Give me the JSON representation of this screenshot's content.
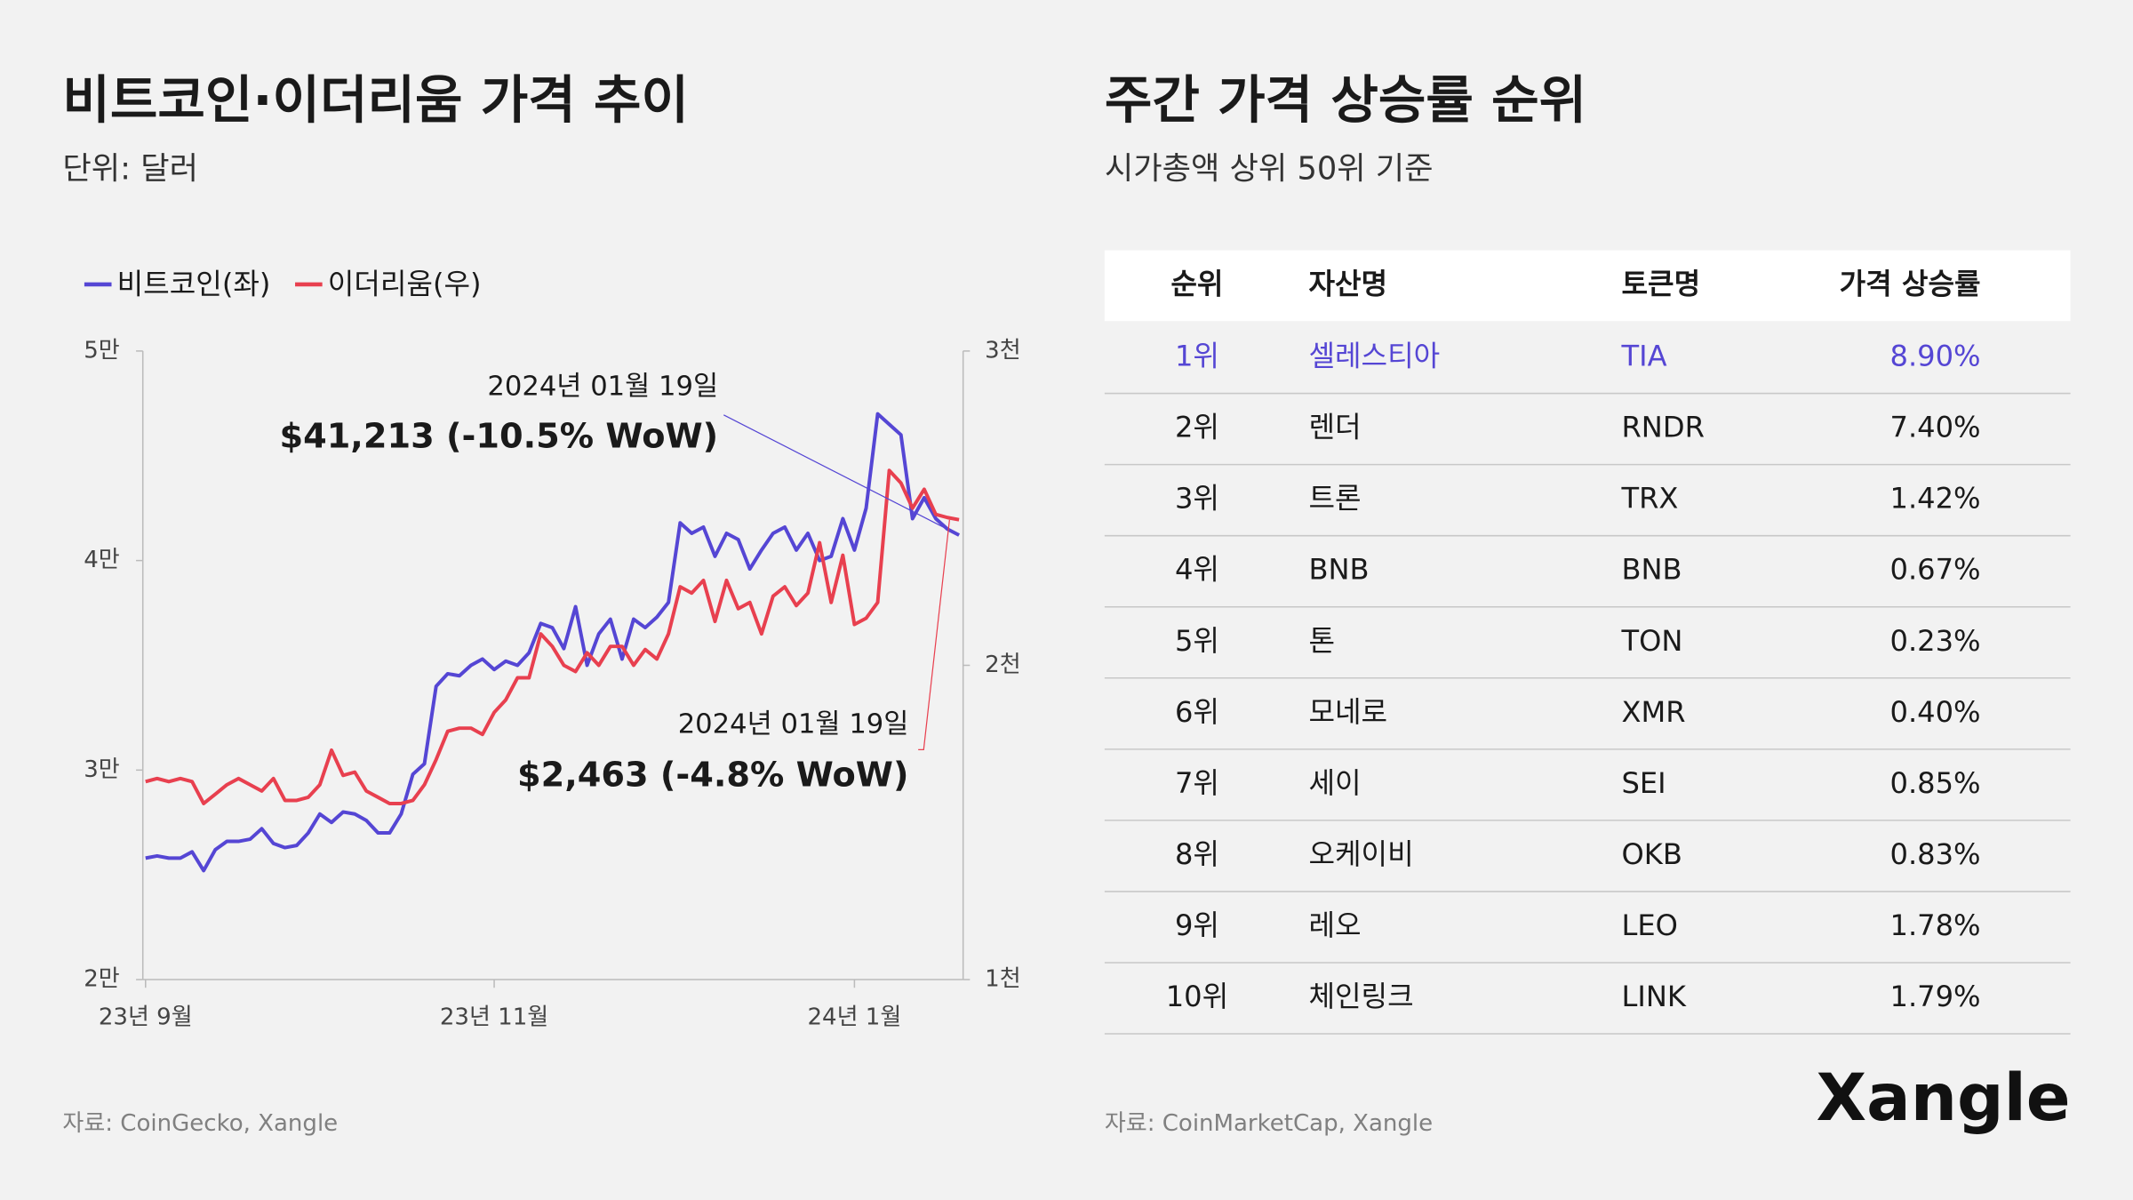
{
  "chart_data": {
    "type": "line",
    "title": "비트코인·이더리움 가격 추이",
    "subtitle": "단위: 달러",
    "source": "자료: CoinGecko, Xangle",
    "categories": [
      "23년 9월",
      null,
      null,
      null,
      null,
      null,
      null,
      null,
      null,
      null,
      null,
      null,
      null,
      null,
      null,
      null,
      null,
      null,
      null,
      null,
      null,
      null,
      null,
      null,
      null,
      null,
      null,
      null,
      null,
      null,
      "23년 11월",
      null,
      null,
      null,
      null,
      null,
      null,
      null,
      null,
      null,
      null,
      null,
      null,
      null,
      null,
      null,
      null,
      null,
      null,
      null,
      null,
      null,
      null,
      null,
      null,
      null,
      null,
      null,
      null,
      null,
      null,
      "24년 1월",
      null,
      null,
      null,
      null,
      null,
      null,
      null,
      null,
      null
    ],
    "series": [
      {
        "name": "비트코인(좌)",
        "color": "#5546d4",
        "axis": "y",
        "values": [
          25800,
          25900,
          25800,
          25800,
          26100,
          25200,
          26200,
          26600,
          26600,
          26700,
          27200,
          26500,
          26300,
          26400,
          27000,
          27900,
          27500,
          28000,
          27900,
          27600,
          27000,
          27000,
          27900,
          29800,
          30300,
          34000,
          34600,
          34500,
          35000,
          35300,
          34800,
          35200,
          35000,
          35600,
          37000,
          36800,
          35800,
          37800,
          35000,
          36500,
          37200,
          35300,
          37200,
          36800,
          37300,
          38000,
          41800,
          41300,
          41600,
          40200,
          41300,
          41000,
          39600,
          40500,
          41300,
          41600,
          40500,
          41300,
          40000,
          40200,
          42000,
          40500,
          42500,
          47000,
          46500,
          46000,
          42000,
          43000,
          42000,
          41500,
          41213
        ]
      },
      {
        "name": "이더리움(우)",
        "color": "#e8404f",
        "axis": "y2",
        "values": [
          1630,
          1640,
          1630,
          1640,
          1630,
          1560,
          1590,
          1620,
          1640,
          1620,
          1600,
          1640,
          1570,
          1570,
          1580,
          1620,
          1730,
          1650,
          1660,
          1600,
          1580,
          1560,
          1560,
          1570,
          1620,
          1700,
          1790,
          1800,
          1800,
          1780,
          1850,
          1890,
          1960,
          1960,
          2100,
          2060,
          2000,
          1980,
          2040,
          2000,
          2060,
          2060,
          2000,
          2050,
          2020,
          2100,
          2250,
          2230,
          2270,
          2140,
          2270,
          2180,
          2200,
          2100,
          2220,
          2250,
          2190,
          2230,
          2390,
          2200,
          2350,
          2130,
          2150,
          2200,
          2620,
          2580,
          2500,
          2560,
          2480,
          2470,
          2463
        ]
      }
    ],
    "ylim": [
      20000,
      50000
    ],
    "yticks": [
      {
        "value": 20000,
        "label": "2만"
      },
      {
        "value": 30000,
        "label": "3만"
      },
      {
        "value": 40000,
        "label": "4만"
      },
      {
        "value": 50000,
        "label": "5만"
      }
    ],
    "y2lim": [
      1000,
      3000
    ],
    "y2ticks": [
      {
        "value": 1000,
        "label": "1천"
      },
      {
        "value": 2000,
        "label": "2천"
      },
      {
        "value": 3000,
        "label": "3천"
      }
    ],
    "legend": "top-left",
    "grid": false,
    "annotations": [
      {
        "date": "2024년 01월 19일",
        "text": "$41,213 (-10.5% WoW)"
      },
      {
        "date": "2024년 01월 19일",
        "text": "$2,463 (-4.8% WoW)"
      }
    ]
  },
  "table": {
    "title": "주간 가격 상승률 순위",
    "subtitle": "시가총액 상위 50위 기준",
    "source": "자료: CoinMarketCap, Xangle",
    "highlight_color": "#5546d4",
    "header": [
      "순위",
      "자산명",
      "토큰명",
      "가격 상승률"
    ],
    "rows": [
      [
        "1위",
        "셀레스티아",
        "TIA",
        "8.90%"
      ],
      [
        "2위",
        "렌더",
        "RNDR",
        "7.40%"
      ],
      [
        "3위",
        "트론",
        "TRX",
        "1.42%"
      ],
      [
        "4위",
        "BNB",
        "BNB",
        "0.67%"
      ],
      [
        "5위",
        "톤",
        "TON",
        "0.23%"
      ],
      [
        "6위",
        "모네로",
        "XMR",
        "0.40%"
      ],
      [
        "7위",
        "세이",
        "SEI",
        "0.85%"
      ],
      [
        "8위",
        "오케이비",
        "OKB",
        "0.83%"
      ],
      [
        "9위",
        "레오",
        "LEO",
        "1.78%"
      ],
      [
        "10위",
        "체인링크",
        "LINK",
        "1.79%"
      ]
    ]
  },
  "brand": "Xangle"
}
